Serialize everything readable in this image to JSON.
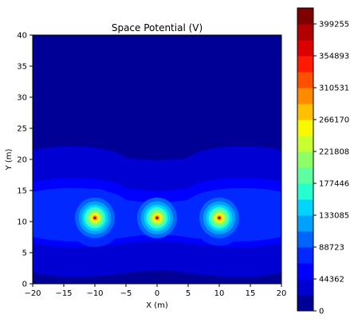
{
  "chart_data": {
    "type": "heatmap",
    "subtype": "filled-contour",
    "title": "Space Potential (V)",
    "xlabel": "X (m)",
    "ylabel": "Y (m)",
    "xlim": [
      -20,
      20
    ],
    "ylim": [
      0,
      40
    ],
    "xticks": [
      "−20",
      "−15",
      "−10",
      "−5",
      "0",
      "5",
      "10",
      "15",
      "20"
    ],
    "yticks": [
      "0",
      "5",
      "10",
      "15",
      "20",
      "25",
      "30",
      "35",
      "40"
    ],
    "sources": [
      {
        "x": -10,
        "y": 10.6
      },
      {
        "x": 0,
        "y": 10.6
      },
      {
        "x": 10,
        "y": 10.6
      }
    ],
    "colormap": "jet",
    "colorbar": {
      "levels": [
        0,
        22181,
        44362,
        66542,
        88723,
        110904,
        133085,
        155265,
        177446,
        199627,
        221808,
        243989,
        266170,
        288350,
        310531,
        332712,
        354893,
        377074,
        399255,
        421435
      ],
      "tick_labels": [
        "0",
        "44362",
        "88723",
        "133085",
        "177446",
        "221808",
        "266170",
        "310531",
        "354893",
        "399255"
      ],
      "colors": [
        "#000096",
        "#0000d2",
        "#0000ff",
        "#0028ff",
        "#0064ff",
        "#00a0ff",
        "#00d4ff",
        "#26ffd0",
        "#5effa0",
        "#8fff68",
        "#c8ff30",
        "#f8f800",
        "#ffc000",
        "#ff8a00",
        "#ff5000",
        "#ff1a00",
        "#dc0000",
        "#b00000",
        "#7f0000"
      ]
    }
  }
}
